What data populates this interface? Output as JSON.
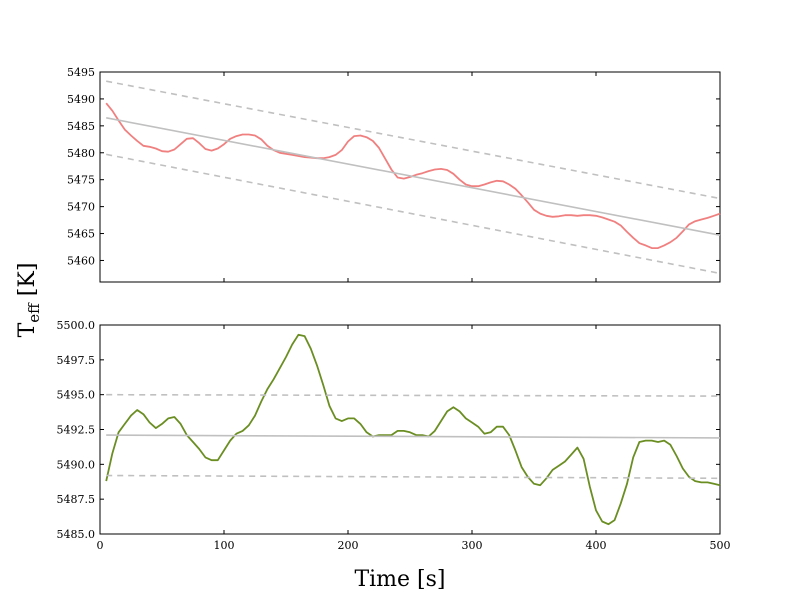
{
  "figure": {
    "ylabel_main": "T",
    "ylabel_sub": "eff",
    "ylabel_unit": " [K]",
    "xlabel": "Time [s]"
  },
  "colors": {
    "top_series": "#f08080",
    "bottom_series": "#6b8e23",
    "fit": "#c0c0c0",
    "band": "#c0c0c0"
  },
  "chart_data": [
    {
      "type": "line",
      "panel": "top",
      "xlim": [
        0,
        500
      ],
      "ylim": [
        5456,
        5495
      ],
      "yticks": [
        5460,
        5465,
        5470,
        5475,
        5480,
        5485,
        5490,
        5495
      ],
      "grid": false,
      "legend": "none",
      "series": [
        {
          "style": "solid",
          "x": [
            5,
            10,
            15,
            20,
            25,
            30,
            35,
            40,
            45,
            50,
            55,
            60,
            65,
            70,
            75,
            80,
            85,
            90,
            95,
            100,
            105,
            110,
            115,
            120,
            125,
            130,
            135,
            140,
            145,
            150,
            155,
            160,
            165,
            170,
            175,
            180,
            185,
            190,
            195,
            200,
            205,
            210,
            215,
            220,
            225,
            230,
            235,
            240,
            245,
            250,
            255,
            260,
            265,
            270,
            275,
            280,
            285,
            290,
            295,
            300,
            305,
            310,
            315,
            320,
            325,
            330,
            335,
            340,
            345,
            350,
            355,
            360,
            365,
            370,
            375,
            380,
            385,
            390,
            395,
            400,
            405,
            410,
            415,
            420,
            425,
            430,
            435,
            440,
            445,
            450,
            455,
            460,
            465,
            470,
            475,
            480,
            485,
            490,
            495,
            500
          ],
          "y": [
            5489.2,
            5487.8,
            5486.0,
            5484.3,
            5483.2,
            5482.2,
            5481.3,
            5481.1,
            5480.8,
            5480.3,
            5480.2,
            5480.6,
            5481.6,
            5482.6,
            5482.7,
            5481.8,
            5480.7,
            5480.4,
            5480.8,
            5481.6,
            5482.6,
            5483.1,
            5483.4,
            5483.4,
            5483.2,
            5482.5,
            5481.3,
            5480.5,
            5480.0,
            5479.8,
            5479.6,
            5479.4,
            5479.2,
            5479.1,
            5479.0,
            5479.0,
            5479.2,
            5479.6,
            5480.5,
            5482.1,
            5483.1,
            5483.2,
            5482.9,
            5482.2,
            5480.9,
            5478.9,
            5476.9,
            5475.4,
            5475.2,
            5475.5,
            5475.9,
            5476.2,
            5476.6,
            5476.9,
            5477.0,
            5476.8,
            5476.1,
            5475.0,
            5474.1,
            5473.8,
            5473.8,
            5474.1,
            5474.5,
            5474.8,
            5474.7,
            5474.1,
            5473.3,
            5472.1,
            5470.8,
            5469.4,
            5468.7,
            5468.3,
            5468.1,
            5468.2,
            5468.4,
            5468.4,
            5468.3,
            5468.4,
            5468.4,
            5468.3,
            5468.0,
            5467.6,
            5467.2,
            5466.5,
            5465.3,
            5464.2,
            5463.2,
            5462.8,
            5462.3,
            5462.3,
            5462.8,
            5463.4,
            5464.2,
            5465.4,
            5466.7,
            5467.3,
            5467.6,
            5467.9,
            5468.3,
            5468.7
          ]
        },
        {
          "style": "fit",
          "x": [
            5,
            500
          ],
          "y": [
            5486.5,
            5464.7
          ]
        },
        {
          "style": "dashed",
          "x": [
            5,
            500
          ],
          "y": [
            5493.3,
            5471.5
          ]
        },
        {
          "style": "dashed",
          "x": [
            5,
            500
          ],
          "y": [
            5479.7,
            5457.6
          ]
        }
      ]
    },
    {
      "type": "line",
      "panel": "bottom",
      "xlim": [
        0,
        500
      ],
      "ylim": [
        5485,
        5500
      ],
      "xticks": [
        0,
        100,
        200,
        300,
        400,
        500
      ],
      "yticks": [
        5485.0,
        5487.5,
        5490.0,
        5492.5,
        5495.0,
        5497.5,
        5500.0
      ],
      "xtick_labels": [
        "0",
        "100",
        "200",
        "300",
        "400",
        "500"
      ],
      "ytick_labels": [
        "5485.0",
        "5487.5",
        "5490.0",
        "5492.5",
        "5495.0",
        "5497.5",
        "5500.0"
      ],
      "grid": false,
      "legend": "none",
      "series": [
        {
          "style": "solid",
          "x": [
            5,
            10,
            15,
            20,
            25,
            30,
            35,
            40,
            45,
            50,
            55,
            60,
            65,
            70,
            75,
            80,
            85,
            90,
            95,
            100,
            105,
            110,
            115,
            120,
            125,
            130,
            135,
            140,
            145,
            150,
            155,
            160,
            165,
            170,
            175,
            180,
            185,
            190,
            195,
            200,
            205,
            210,
            215,
            220,
            225,
            230,
            235,
            240,
            245,
            250,
            255,
            260,
            265,
            270,
            275,
            280,
            285,
            290,
            295,
            300,
            305,
            310,
            315,
            320,
            325,
            330,
            335,
            340,
            345,
            350,
            355,
            360,
            365,
            370,
            375,
            380,
            385,
            390,
            395,
            400,
            405,
            410,
            415,
            420,
            425,
            430,
            435,
            440,
            445,
            450,
            455,
            460,
            465,
            470,
            475,
            480,
            485,
            490,
            495,
            500
          ],
          "y": [
            5488.8,
            5490.8,
            5492.3,
            5492.9,
            5493.5,
            5493.9,
            5493.6,
            5493.0,
            5492.6,
            5492.9,
            5493.3,
            5493.4,
            5492.9,
            5492.1,
            5491.6,
            5491.1,
            5490.5,
            5490.3,
            5490.3,
            5491.0,
            5491.7,
            5492.2,
            5492.4,
            5492.8,
            5493.5,
            5494.5,
            5495.4,
            5496.1,
            5496.9,
            5497.7,
            5498.6,
            5499.3,
            5499.2,
            5498.3,
            5497.1,
            5495.7,
            5494.2,
            5493.3,
            5493.1,
            5493.3,
            5493.3,
            5492.9,
            5492.3,
            5492.0,
            5492.1,
            5492.1,
            5492.1,
            5492.4,
            5492.4,
            5492.3,
            5492.1,
            5492.1,
            5492.0,
            5492.4,
            5493.1,
            5493.8,
            5494.1,
            5493.8,
            5493.3,
            5493.0,
            5492.7,
            5492.2,
            5492.3,
            5492.7,
            5492.7,
            5492.1,
            5491.0,
            5489.8,
            5489.1,
            5488.6,
            5488.5,
            5489.0,
            5489.6,
            5489.9,
            5490.2,
            5490.7,
            5491.2,
            5490.4,
            5488.4,
            5486.7,
            5485.9,
            5485.7,
            5486.0,
            5487.2,
            5488.6,
            5490.5,
            5491.6,
            5491.7,
            5491.7,
            5491.6,
            5491.7,
            5491.4,
            5490.6,
            5489.7,
            5489.1,
            5488.8,
            5488.7,
            5488.7,
            5488.6,
            5488.5
          ]
        },
        {
          "style": "fit",
          "x": [
            5,
            500
          ],
          "y": [
            5492.1,
            5491.9
          ]
        },
        {
          "style": "dashed",
          "x": [
            5,
            500
          ],
          "y": [
            5495.0,
            5494.9
          ]
        },
        {
          "style": "dashed",
          "x": [
            5,
            500
          ],
          "y": [
            5489.2,
            5489.0
          ]
        }
      ]
    }
  ]
}
